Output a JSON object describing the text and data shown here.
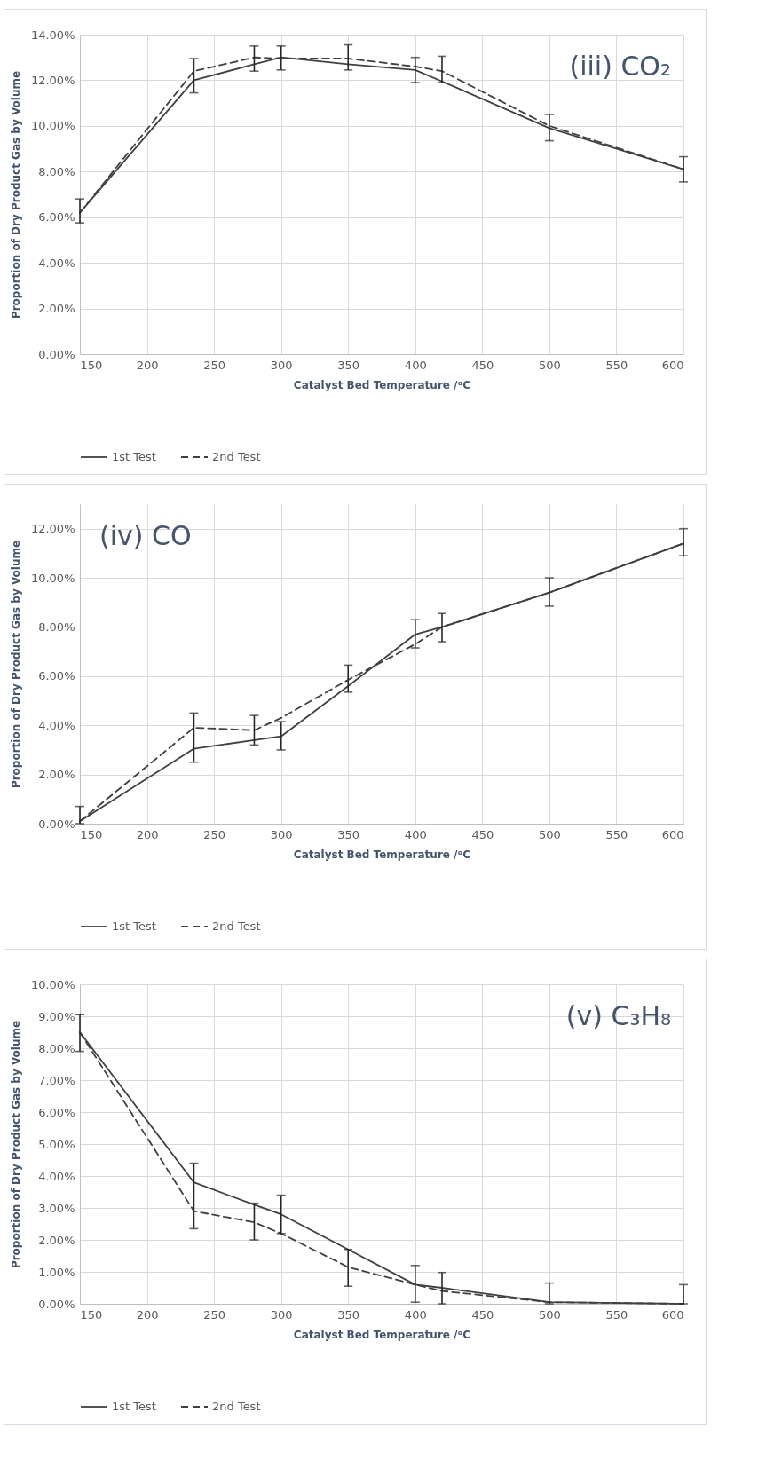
{
  "chart_data": [
    {
      "type": "line",
      "annotations": [
        "(iii) CO₂"
      ],
      "xlabel": "Catalyst Bed Temperature /ᵒC",
      "ylabel": "Proportion of Dry Product Gas by Volume",
      "x": [
        150,
        235,
        280,
        300,
        350,
        400,
        420,
        500,
        600
      ],
      "series": [
        {
          "name": "1st Test",
          "color": "#404040",
          "line_style": "solid",
          "values": [
            6.2,
            12.0,
            12.7,
            13.0,
            12.7,
            12.45,
            11.95,
            9.9,
            8.1
          ],
          "errors": [
            [
              5.75,
              6.8
            ],
            [
              11.45,
              12.95
            ],
            [
              12.4,
              13.5
            ],
            [
              12.45,
              13.5
            ],
            [
              12.45,
              13.55
            ],
            [
              11.9,
              13.0
            ],
            [
              11.9,
              13.05
            ],
            [
              9.35,
              10.5
            ],
            [
              7.55,
              8.65
            ]
          ]
        },
        {
          "name": "2nd Test",
          "color": "#404040",
          "line_style": "dashed",
          "values": [
            6.2,
            12.4,
            13.0,
            12.95,
            12.95,
            12.6,
            12.4,
            10.0,
            8.1
          ]
        }
      ],
      "xlim": [
        150,
        600
      ],
      "xticks": [
        150,
        200,
        250,
        300,
        350,
        400,
        450,
        500,
        550,
        600
      ],
      "ylim": [
        0,
        14
      ],
      "yticks": [
        {
          "value": 0,
          "label": "0.00%"
        },
        {
          "value": 2,
          "label": "2.00%"
        },
        {
          "value": 4,
          "label": "4.00%"
        },
        {
          "value": 6,
          "label": "6.00%"
        },
        {
          "value": 8,
          "label": "8.00%"
        },
        {
          "value": 10,
          "label": "10.00%"
        },
        {
          "value": 12,
          "label": "12.00%"
        },
        {
          "value": 14,
          "label": "14.00%"
        }
      ],
      "grid": true,
      "legend": "bottom",
      "marker": "none"
    },
    {
      "type": "line",
      "annotations": [
        "(iv) CO"
      ],
      "xlabel": "Catalyst Bed Temperature /ᵒC",
      "ylabel": "Proportion of Dry Product Gas by Volume",
      "x": [
        150,
        235,
        280,
        300,
        350,
        400,
        420,
        500,
        600
      ],
      "series": [
        {
          "name": "1st Test",
          "color": "#404040",
          "line_style": "solid",
          "values": [
            0.1,
            3.05,
            3.4,
            3.55,
            5.6,
            7.7,
            8.0,
            9.4,
            11.4
          ],
          "errors": [
            [
              0.0,
              0.7
            ],
            [
              2.5,
              4.5
            ],
            [
              3.2,
              4.4
            ],
            [
              3.0,
              4.15
            ],
            [
              5.35,
              6.45
            ],
            [
              7.15,
              8.3
            ],
            [
              7.4,
              8.55
            ],
            [
              8.85,
              10.0
            ],
            [
              10.9,
              12.0
            ]
          ]
        },
        {
          "name": "2nd Test",
          "color": "#404040",
          "line_style": "dashed",
          "values": [
            0.1,
            3.9,
            3.8,
            4.3,
            5.85,
            7.3,
            8.0,
            9.4,
            11.4
          ]
        }
      ],
      "xlim": [
        150,
        600
      ],
      "xticks": [
        150,
        200,
        250,
        300,
        350,
        400,
        450,
        500,
        550,
        600
      ],
      "ylim": [
        0,
        13
      ],
      "yticks": [
        {
          "value": 0,
          "label": "0.00%"
        },
        {
          "value": 2,
          "label": "2.00%"
        },
        {
          "value": 4,
          "label": "4.00%"
        },
        {
          "value": 6,
          "label": "6.00%"
        },
        {
          "value": 8,
          "label": "8.00%"
        },
        {
          "value": 10,
          "label": "10.00%"
        },
        {
          "value": 12,
          "label": "12.00%"
        }
      ],
      "grid": true,
      "legend": "bottom",
      "marker": "none"
    },
    {
      "type": "line",
      "annotations": [
        "(v) C₃H₈"
      ],
      "xlabel": "Catalyst Bed Temperature /ᵒC",
      "ylabel": "Proportion of Dry Product Gas by Volume",
      "x": [
        150,
        235,
        280,
        300,
        350,
        400,
        420,
        500,
        600
      ],
      "series": [
        {
          "name": "1st Test",
          "color": "#404040",
          "line_style": "solid",
          "values": [
            8.5,
            3.8,
            3.1,
            2.8,
            1.7,
            0.6,
            0.5,
            0.05,
            0.0
          ],
          "errors": [
            [
              7.9,
              9.05
            ],
            [
              2.35,
              4.4
            ],
            [
              2.0,
              3.15
            ],
            [
              2.2,
              3.4
            ],
            [
              0.55,
              1.7
            ],
            [
              0.05,
              1.2
            ],
            [
              0.0,
              0.98
            ],
            [
              0.0,
              0.65
            ],
            [
              0.0,
              0.6
            ]
          ]
        },
        {
          "name": "2nd Test",
          "color": "#404040",
          "line_style": "dashed",
          "values": [
            8.5,
            2.9,
            2.55,
            2.2,
            1.15,
            0.6,
            0.4,
            0.05,
            0.0
          ]
        }
      ],
      "xlim": [
        150,
        600
      ],
      "xticks": [
        150,
        200,
        250,
        300,
        350,
        400,
        450,
        500,
        550,
        600
      ],
      "ylim": [
        0,
        10
      ],
      "yticks": [
        {
          "value": 0,
          "label": "0.00%"
        },
        {
          "value": 1,
          "label": "1.00%"
        },
        {
          "value": 2,
          "label": "2.00%"
        },
        {
          "value": 3,
          "label": "3.00%"
        },
        {
          "value": 4,
          "label": "4.00%"
        },
        {
          "value": 5,
          "label": "5.00%"
        },
        {
          "value": 6,
          "label": "6.00%"
        },
        {
          "value": 7,
          "label": "7.00%"
        },
        {
          "value": 8,
          "label": "8.00%"
        },
        {
          "value": 9,
          "label": "9.00%"
        },
        {
          "value": 10,
          "label": "10.00%"
        }
      ],
      "grid": true,
      "legend": "bottom",
      "marker": "none"
    }
  ]
}
